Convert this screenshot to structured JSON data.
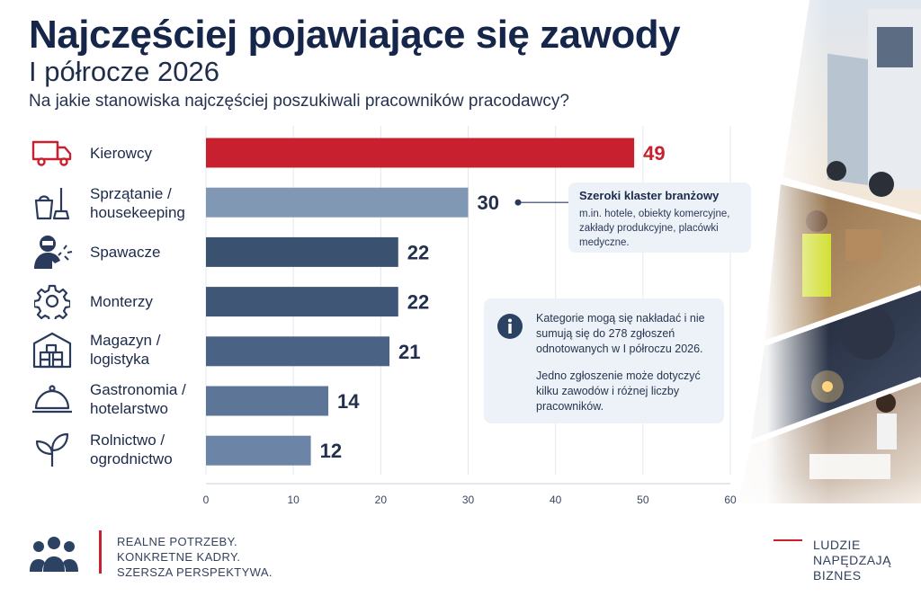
{
  "header": {
    "title": "Najczęściej pojawiające się zawody",
    "subtitle": "I półrocze 2026",
    "question": "Na jakie stanowiska najczęściej poszukiwali pracowników pracodawcy?"
  },
  "chart_data": {
    "type": "bar",
    "orientation": "horizontal",
    "categories": [
      "Kierowcy",
      "Sprzątanie /\nhousekeeping",
      "Spawacze",
      "Monterzy",
      "Magazyn /\nlogistyka",
      "Gastronomia /\nhotelarstwo",
      "Rolnictwo /\nogrodnictwo"
    ],
    "values": [
      49,
      30,
      22,
      22,
      21,
      14,
      12
    ],
    "xlim": [
      0,
      60
    ],
    "xticks": [
      0,
      10,
      20,
      30,
      40,
      50,
      60
    ],
    "grid": "vertical",
    "highlight_index": 0,
    "colors": {
      "highlight": "#c8202f",
      "bars": [
        "#c8202f",
        "#8198b5",
        "#3b5170",
        "#3f5676",
        "#4a6283",
        "#5d7698",
        "#6c85a6"
      ],
      "value_highlight": "#c8202f",
      "value_default": "#22304d"
    }
  },
  "categories_icons": [
    "truck-icon",
    "cleaning-bucket-icon",
    "welder-icon",
    "gear-icon",
    "warehouse-icon",
    "cloche-icon",
    "leaf-icon"
  ],
  "callouts": {
    "cluster": {
      "heading": "Szeroki klaster branżowy",
      "body": "m.in. hotele, obiekty komercyjne, zakłady produkcyjne, placówki medyczne."
    },
    "info": {
      "text1": "Kategorie mogą się nakładać i nie sumują się do 278 zgłoszeń odnotowanych w I półroczu 2026.",
      "text2": "Jedno zgłoszenie może dotyczyć kilku zawodów i różnej liczby pracowników."
    }
  },
  "footer": {
    "tagline": [
      "REALNE POTRZEBY.",
      "KONKRETNE KADRY.",
      "SZERSZA PERSPEKTYWA."
    ],
    "slogan": [
      "LUDZIE",
      "NAPĘDZAJĄ",
      "BIZNES"
    ]
  },
  "photos": [
    "truck-photo",
    "warehouse-worker-photo",
    "welder-photo",
    "housekeeper-photo"
  ]
}
